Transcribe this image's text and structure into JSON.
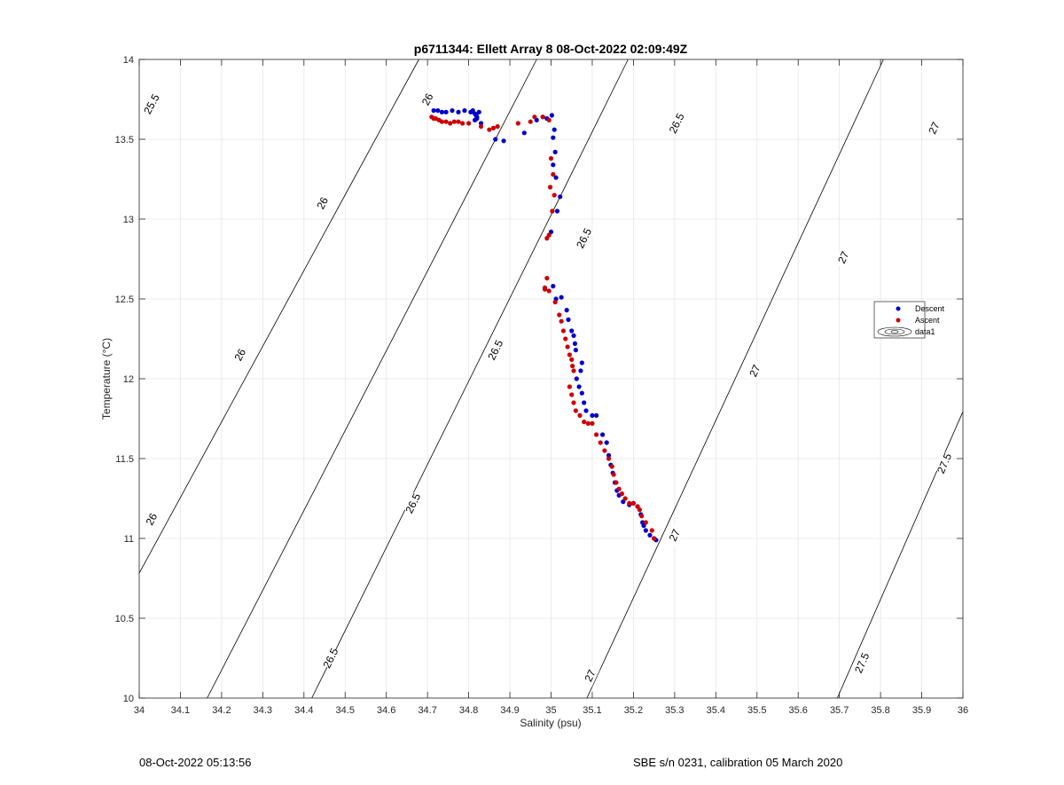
{
  "chart_data": {
    "type": "scatter",
    "title": "p6711344: Ellett Array 8 08-Oct-2022 02:09:49Z",
    "xlabel": "Salinity (psu)",
    "ylabel": "Temperature (°C)",
    "xlim": [
      34,
      36
    ],
    "ylim": [
      10,
      14
    ],
    "xticks": [
      "34",
      "34.1",
      "34.2",
      "34.3",
      "34.4",
      "34.5",
      "34.6",
      "34.7",
      "34.8",
      "34.9",
      "35",
      "35.1",
      "35.2",
      "35.3",
      "35.4",
      "35.5",
      "35.6",
      "35.7",
      "35.8",
      "35.9",
      "36"
    ],
    "yticks": [
      "10",
      "10.5",
      "11",
      "11.5",
      "12",
      "12.5",
      "13",
      "13.5",
      "14"
    ],
    "grid": true,
    "legend_position": "right",
    "legend": [
      {
        "label": "Descent",
        "color": "#0000cc",
        "marker": "dot"
      },
      {
        "label": "Ascent",
        "color": "#cc0000",
        "marker": "dot"
      },
      {
        "label": "data1",
        "color": "#000000",
        "marker": "contour"
      }
    ],
    "series": [
      {
        "name": "Descent",
        "color": "#0000cc",
        "x": [
          34.715,
          34.725,
          34.735,
          34.745,
          34.76,
          34.775,
          34.79,
          34.805,
          34.815,
          34.82,
          34.815,
          34.81,
          34.825,
          34.818,
          34.82,
          34.83,
          34.865,
          34.885,
          34.935,
          34.965,
          34.98,
          34.99,
          35.002,
          35.008,
          35.005,
          35.01,
          35.005,
          35.012,
          35.022,
          35.015,
          35.0,
          35.005,
          35.012,
          35.025,
          35.038,
          35.042,
          35.05,
          35.055,
          35.058,
          35.06,
          35.075,
          35.072,
          35.062,
          35.068,
          35.075,
          35.08,
          35.085,
          35.1,
          35.11,
          35.125,
          35.135,
          35.14,
          35.145,
          35.15,
          35.155,
          35.16,
          35.165,
          35.175,
          35.19,
          35.2,
          35.21,
          35.218,
          35.222,
          35.225,
          35.23,
          35.24,
          35.25,
          35.255
        ],
        "y": [
          13.68,
          13.68,
          13.67,
          13.67,
          13.68,
          13.67,
          13.68,
          13.67,
          13.66,
          13.64,
          13.62,
          13.68,
          13.67,
          13.65,
          13.63,
          13.6,
          13.5,
          13.49,
          13.54,
          13.62,
          13.64,
          13.63,
          13.65,
          13.56,
          13.51,
          13.42,
          13.34,
          13.26,
          13.14,
          13.05,
          12.92,
          12.58,
          12.5,
          12.51,
          12.43,
          12.37,
          12.3,
          12.27,
          12.22,
          12.18,
          12.1,
          12.05,
          12.0,
          11.95,
          11.91,
          11.85,
          11.8,
          11.77,
          11.77,
          11.65,
          11.6,
          11.52,
          11.46,
          11.41,
          11.35,
          11.3,
          11.27,
          11.23,
          11.21,
          11.22,
          11.2,
          11.15,
          11.1,
          11.08,
          11.05,
          11.02,
          11.0,
          10.99
        ]
      },
      {
        "name": "Ascent",
        "color": "#cc0000",
        "x": [
          34.71,
          34.715,
          34.72,
          34.728,
          34.735,
          34.745,
          34.755,
          34.765,
          34.775,
          34.785,
          34.8,
          34.83,
          34.85,
          34.86,
          34.87,
          34.92,
          34.95,
          34.96,
          34.98,
          34.995,
          35.0,
          35.005,
          34.998,
          35.008,
          35.003,
          34.995,
          34.99,
          34.985,
          34.99,
          34.995,
          34.985,
          35.01,
          35.02,
          35.025,
          35.03,
          35.035,
          35.04,
          35.045,
          35.05,
          35.052,
          35.055,
          35.045,
          35.05,
          35.055,
          35.06,
          35.07,
          35.08,
          35.09,
          35.1,
          35.11,
          35.12,
          35.13,
          35.14,
          35.148,
          35.152,
          35.158,
          35.165,
          35.172,
          35.18,
          35.19,
          35.2,
          35.21,
          35.215,
          35.22,
          35.23,
          35.245,
          35.25
        ],
        "y": [
          13.64,
          13.63,
          13.63,
          13.62,
          13.61,
          13.61,
          13.6,
          13.61,
          13.61,
          13.6,
          13.6,
          13.58,
          13.56,
          13.57,
          13.58,
          13.6,
          13.61,
          13.64,
          13.64,
          13.62,
          13.38,
          13.28,
          13.2,
          13.15,
          13.05,
          12.9,
          12.88,
          12.57,
          12.63,
          12.55,
          12.56,
          12.48,
          12.4,
          12.36,
          12.3,
          12.25,
          12.2,
          12.15,
          12.12,
          12.08,
          12.05,
          11.95,
          11.9,
          11.85,
          11.8,
          11.77,
          11.73,
          11.72,
          11.72,
          11.65,
          11.6,
          11.55,
          11.5,
          11.45,
          11.4,
          11.35,
          11.31,
          11.28,
          11.25,
          11.22,
          11.22,
          11.2,
          11.18,
          11.14,
          11.1,
          11.05,
          11.0
        ]
      }
    ],
    "contours": [
      {
        "label": "25.5",
        "s0": 33.835,
        "slope": 0.211,
        "label_points": [
          {
            "x": 34.03,
            "y": 13.72
          }
        ]
      },
      {
        "label": "26",
        "s0": 34.165,
        "slope": 0.2,
        "label_points": [
          {
            "x": 34.03,
            "y": 11.12
          },
          {
            "x": 34.245,
            "y": 12.15
          },
          {
            "x": 34.445,
            "y": 13.1
          },
          {
            "x": 34.7,
            "y": 13.75
          }
        ]
      },
      {
        "label": "26.5",
        "s0": 34.419,
        "slope": 0.192,
        "label_points": [
          {
            "x": 34.465,
            "y": 10.25
          },
          {
            "x": 34.665,
            "y": 11.22
          },
          {
            "x": 34.865,
            "y": 12.18
          },
          {
            "x": 35.08,
            "y": 12.88
          },
          {
            "x": 35.305,
            "y": 13.6
          }
        ]
      },
      {
        "label": "27",
        "s0": 35.087,
        "slope": 0.18,
        "label_points": [
          {
            "x": 35.095,
            "y": 10.14
          },
          {
            "x": 35.3,
            "y": 11.02
          },
          {
            "x": 35.495,
            "y": 12.05
          },
          {
            "x": 35.71,
            "y": 12.76
          },
          {
            "x": 35.93,
            "y": 13.57
          }
        ]
      },
      {
        "label": "27.5",
        "s0": 35.695,
        "slope": 0.17,
        "label_points": [
          {
            "x": 35.755,
            "y": 10.22
          },
          {
            "x": 35.955,
            "y": 11.47
          }
        ]
      }
    ]
  },
  "footer": {
    "timestamp": "08-Oct-2022 05:13:56",
    "sensor_info": "SBE s/n 0231, calibration 05 March 2020"
  }
}
